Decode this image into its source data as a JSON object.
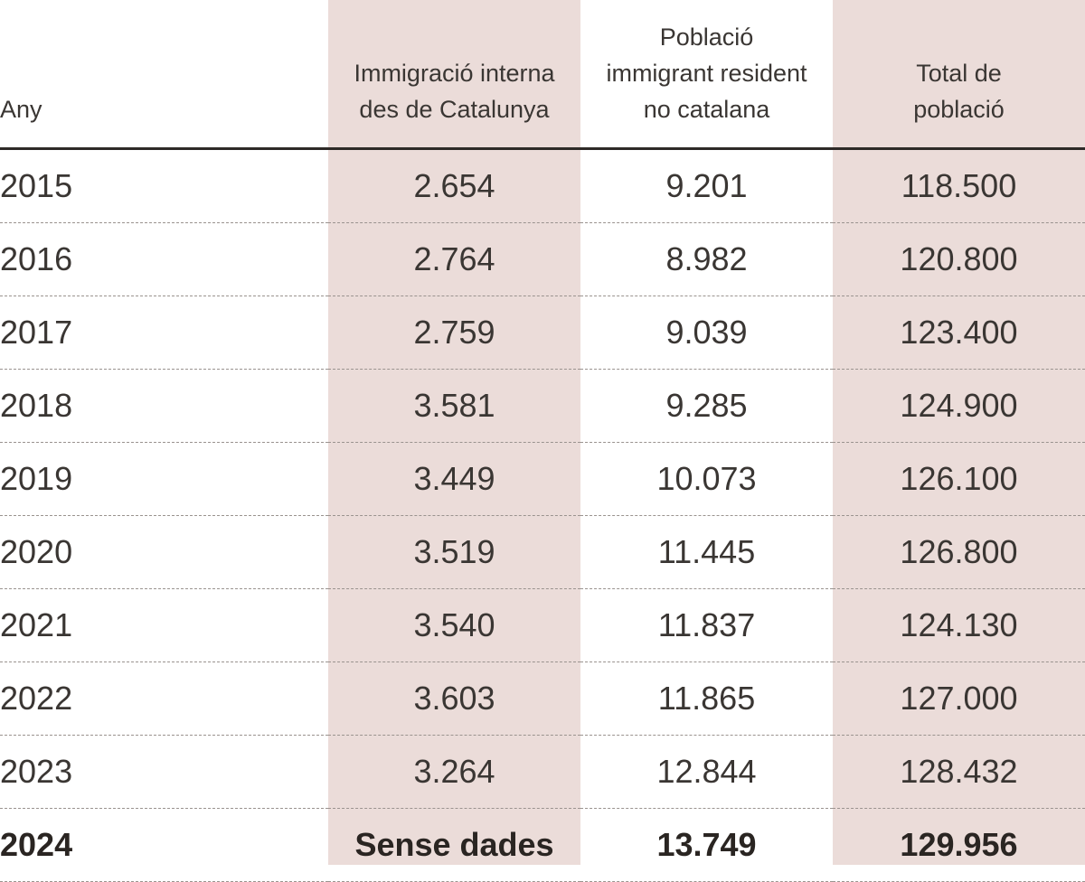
{
  "chart_data": {
    "type": "table",
    "columns": [
      "Any",
      "Immigració interna des de Catalunya",
      "Població immigrant resident no catalana",
      "Total de població"
    ],
    "header_lines": [
      [
        "Any"
      ],
      [
        "Immigració interna",
        "des de Catalunya"
      ],
      [
        "Població",
        "immigrant resident",
        "no catalana"
      ],
      [
        "Total de",
        "població"
      ]
    ],
    "rows": [
      [
        "2015",
        "2.654",
        "9.201",
        "118.500"
      ],
      [
        "2016",
        "2.764",
        "8.982",
        "120.800"
      ],
      [
        "2017",
        "2.759",
        "9.039",
        "123.400"
      ],
      [
        "2018",
        "3.581",
        "9.285",
        "124.900"
      ],
      [
        "2019",
        "3.449",
        "10.073",
        "126.100"
      ],
      [
        "2020",
        "3.519",
        "11.445",
        "126.800"
      ],
      [
        "2021",
        "3.540",
        "11.837",
        "124.130"
      ],
      [
        "2022",
        "3.603",
        "11.865",
        "127.000"
      ],
      [
        "2023",
        "3.264",
        "12.844",
        "128.432"
      ],
      [
        "2024",
        "Sense dades",
        "13.749",
        "129.956"
      ]
    ],
    "highlight_last_row": true,
    "colors": {
      "shaded_column": "#ebdcd9",
      "text": "#3a3633",
      "header_rule": "#2e2a27",
      "row_divider": "#9a938f"
    }
  }
}
